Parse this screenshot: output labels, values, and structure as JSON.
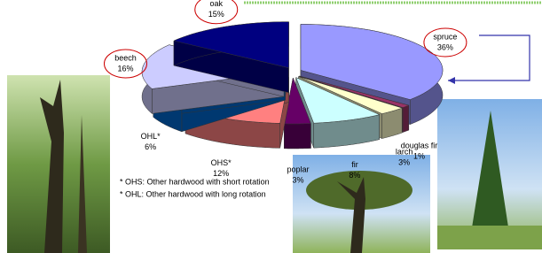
{
  "chart_data": {
    "type": "pie",
    "categories": [
      "spruce",
      "douglas fir",
      "larch",
      "fir",
      "poplar",
      "OHS*",
      "OHL*",
      "beech",
      "oak"
    ],
    "values": [
      36,
      1,
      3,
      8,
      3,
      12,
      6,
      16,
      15
    ],
    "value_labels": [
      "36%",
      "1%",
      "3%",
      "8%",
      "3%",
      "12%",
      "6%",
      "16%",
      "15%"
    ],
    "colors": [
      "#9999ff",
      "#993366",
      "#ffffcc",
      "#ccffff",
      "#660066",
      "#ff8080",
      "#0066cc",
      "#ccccff",
      "#000080"
    ],
    "highlighted": [
      0,
      7,
      8
    ],
    "highlight_color": "#cc0000",
    "notes": [
      "* OHS:  Other hardwood with short rotation",
      "* OHL:  Other hardwood with long rotation"
    ]
  }
}
